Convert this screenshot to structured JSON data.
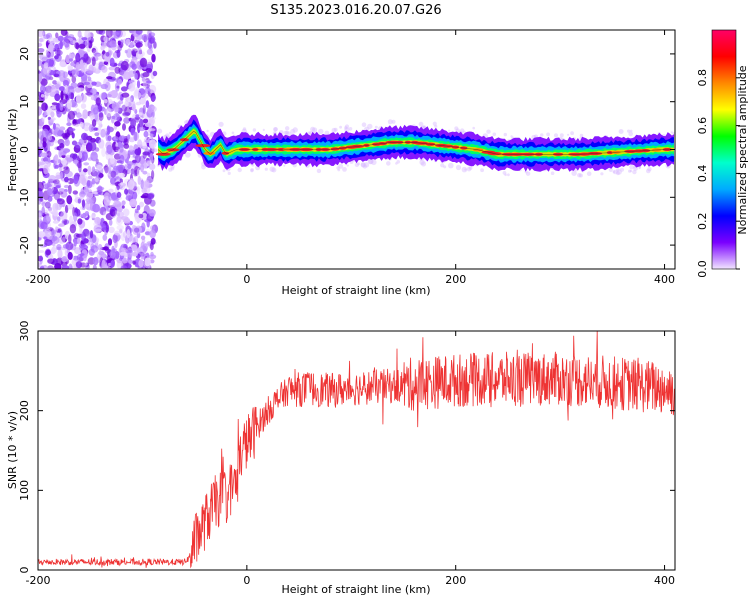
{
  "title": "S135.2023.016.20.07.G26",
  "chart_data": [
    {
      "type": "heatmap",
      "xlabel": "Height of straight line (km)",
      "ylabel": "Frequency (Hz)",
      "xlim": [
        -200,
        410
      ],
      "ylim": [
        -25,
        25
      ],
      "xticks": [
        -200,
        0,
        200,
        400
      ],
      "yticks": [
        -20,
        -10,
        0,
        10,
        20
      ],
      "colorbar": {
        "label": "Normalized spectral amplitude",
        "range": [
          0,
          1
        ],
        "ticks": [
          "0.0",
          "0.2",
          "0.4",
          "0.6",
          "0.8"
        ],
        "colors": [
          "#f2e6ff",
          "#7a00ff",
          "#0000ff",
          "#00aaff",
          "#00ffcc",
          "#00ff00",
          "#ffff00",
          "#ff8800",
          "#ff0000",
          "#ff0066"
        ]
      },
      "ridge": {
        "x": [
          -85,
          -80,
          -70,
          -60,
          -55,
          -50,
          -45,
          -40,
          -35,
          -30,
          -25,
          -20,
          -10,
          0,
          20,
          50,
          80,
          100,
          120,
          140,
          160,
          180,
          200,
          220,
          240,
          280,
          320,
          360,
          400,
          410
        ],
        "y": [
          0,
          -1,
          0,
          2,
          3,
          4,
          2,
          0,
          -1,
          0,
          1,
          -1,
          0,
          0,
          0,
          0,
          0,
          0.5,
          1,
          1.5,
          1.5,
          1,
          0.5,
          0,
          -1,
          -1,
          -1,
          -0.5,
          0,
          0
        ]
      },
      "grid": false
    },
    {
      "type": "line",
      "xlabel": "Height of straight line (km)",
      "ylabel": "SNR (10 * v/v)",
      "xlim": [
        -200,
        410
      ],
      "ylim": [
        0,
        300
      ],
      "xticks": [
        -200,
        0,
        200,
        400
      ],
      "yticks": [
        0,
        100,
        200,
        300
      ],
      "color": "#ee3333",
      "envelope": {
        "x": [
          -200,
          -150,
          -100,
          -60,
          -55,
          -50,
          -40,
          -30,
          -20,
          -10,
          -5,
          0,
          10,
          20,
          30,
          40,
          60,
          80,
          100,
          150,
          200,
          250,
          300,
          350,
          400,
          410
        ],
        "y": [
          10,
          10,
          10,
          10,
          15,
          35,
          60,
          85,
          95,
          110,
          150,
          160,
          180,
          200,
          215,
          225,
          228,
          225,
          228,
          232,
          238,
          240,
          240,
          235,
          228,
          225
        ]
      },
      "grid": false
    }
  ]
}
